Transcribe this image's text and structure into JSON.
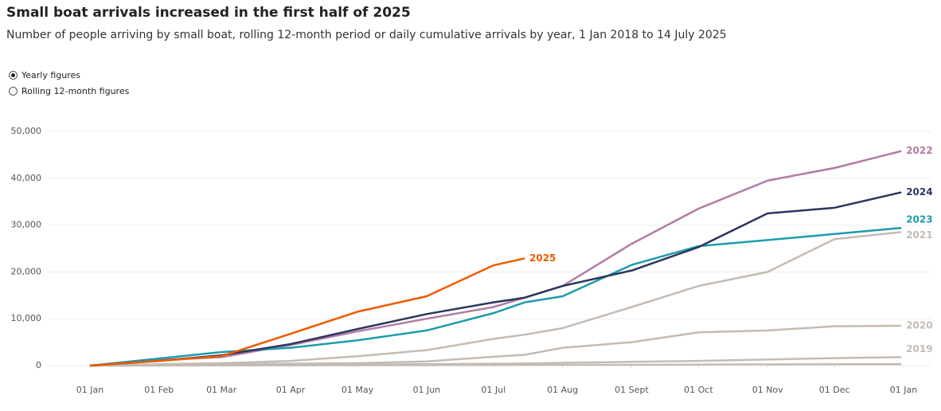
{
  "controls": {
    "options": [
      "Yearly figures",
      "Rolling 12-month figures"
    ],
    "selected": 0
  },
  "chart_data": {
    "type": "line",
    "title": "Small boat arrivals increased in the first half of 2025",
    "subtitle": "Number of people arriving by small boat, rolling 12-month period or daily cumulative arrivals by year, 1 Jan 2018 to 14 July 2025",
    "x": [
      0,
      31,
      59,
      90,
      120,
      151,
      181,
      195,
      212,
      243,
      273,
      304,
      334,
      364
    ],
    "xlim": [
      0,
      365
    ],
    "xticks": [
      {
        "value": 0,
        "label": "01 Jan"
      },
      {
        "value": 31,
        "label": "01 Feb"
      },
      {
        "value": 59,
        "label": "01 Mar"
      },
      {
        "value": 90,
        "label": "01 Apr"
      },
      {
        "value": 120,
        "label": "01 May"
      },
      {
        "value": 151,
        "label": "01 Jun"
      },
      {
        "value": 181,
        "label": "01 Jul"
      },
      {
        "value": 212,
        "label": "01 Aug"
      },
      {
        "value": 243,
        "label": "01 Sept"
      },
      {
        "value": 273,
        "label": "01 Oct"
      },
      {
        "value": 304,
        "label": "01 Nov"
      },
      {
        "value": 334,
        "label": "01 Dec"
      },
      {
        "value": 365,
        "label": "01 Jan"
      }
    ],
    "ylim": [
      0,
      50000
    ],
    "yticks": [
      0,
      {
        "value": 10000,
        "label": "10,000"
      },
      {
        "value": 20000,
        "label": "20,000"
      },
      {
        "value": 30000,
        "label": "30,000"
      },
      {
        "value": 40000,
        "label": "40,000"
      },
      {
        "value": 50000,
        "label": "50,000"
      }
    ],
    "grid": true,
    "series": [
      {
        "color": "#c4bbb4",
        "values": [
          0,
          20,
          40,
          60,
          80,
          100,
          120,
          130,
          150,
          180,
          220,
          260,
          290,
          300
        ]
      },
      {
        "name": "2019",
        "color": "#c4bbb4",
        "values": [
          0,
          50,
          100,
          150,
          200,
          300,
          400,
          450,
          600,
          800,
          1000,
          1300,
          1600,
          1800
        ]
      },
      {
        "name": "2020",
        "color": "#c4bbb4",
        "values": [
          0,
          200,
          300,
          400,
          500,
          900,
          1900,
          2300,
          3800,
          5000,
          7100,
          7500,
          8400,
          8500
        ]
      },
      {
        "name": "2021",
        "color": "#c4bbb4",
        "values": [
          0,
          300,
          500,
          1000,
          2000,
          3300,
          5700,
          6600,
          8000,
          12500,
          17000,
          20000,
          27000,
          28500
        ]
      },
      {
        "name": "2022",
        "color": "#b17ba6",
        "values": [
          0,
          1200,
          1800,
          4400,
          7300,
          10000,
          12500,
          14500,
          17000,
          26000,
          33500,
          39500,
          42200,
          45800
        ]
      },
      {
        "name": "2023",
        "color": "#1f9bab",
        "values": [
          0,
          1500,
          2900,
          3800,
          5400,
          7500,
          11200,
          13500,
          14800,
          21500,
          25500,
          26800,
          28100,
          29400
        ]
      },
      {
        "name": "2024",
        "color": "#2b365e",
        "values": [
          0,
          1000,
          2200,
          4600,
          7800,
          11000,
          13500,
          14500,
          17000,
          20300,
          25300,
          32500,
          33700,
          37000
        ]
      },
      {
        "name": "2025",
        "color": "#f05a00",
        "values": [
          0,
          1000,
          2000,
          6800,
          11500,
          14800,
          21400,
          22900,
          null,
          null,
          null,
          null,
          null,
          null
        ]
      }
    ]
  }
}
